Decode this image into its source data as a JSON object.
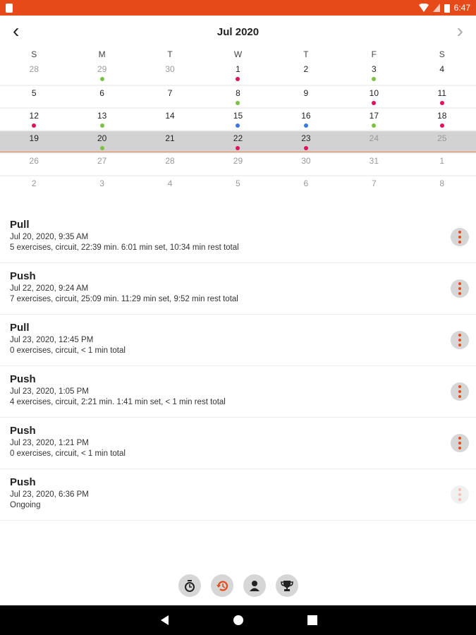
{
  "status_bar": {
    "time": "6:47"
  },
  "calendar": {
    "title": "Jul 2020",
    "weekdays": [
      "S",
      "M",
      "T",
      "W",
      "T",
      "F",
      "S"
    ],
    "colors": {
      "green": "#7cc242",
      "red": "#e0105a",
      "blue": "#3a78e0"
    },
    "selected_week": 3,
    "weeks": [
      [
        {
          "d": "28",
          "muted": true
        },
        {
          "d": "29",
          "muted": true,
          "dot": "green"
        },
        {
          "d": "30",
          "muted": true
        },
        {
          "d": "1",
          "dot": "red"
        },
        {
          "d": "2"
        },
        {
          "d": "3",
          "dot": "green"
        },
        {
          "d": "4"
        }
      ],
      [
        {
          "d": "5"
        },
        {
          "d": "6"
        },
        {
          "d": "7"
        },
        {
          "d": "8",
          "dot": "green"
        },
        {
          "d": "9"
        },
        {
          "d": "10",
          "dot": "red"
        },
        {
          "d": "11",
          "dot": "red"
        }
      ],
      [
        {
          "d": "12",
          "dot": "red"
        },
        {
          "d": "13",
          "dot": "green"
        },
        {
          "d": "14"
        },
        {
          "d": "15",
          "dot": "blue"
        },
        {
          "d": "16",
          "dot": "blue"
        },
        {
          "d": "17",
          "dot": "green"
        },
        {
          "d": "18",
          "dot": "red"
        }
      ],
      [
        {
          "d": "19"
        },
        {
          "d": "20",
          "dot": "green"
        },
        {
          "d": "21"
        },
        {
          "d": "22",
          "dot": "red"
        },
        {
          "d": "23",
          "dot": "red"
        },
        {
          "d": "24",
          "muted": true
        },
        {
          "d": "25",
          "muted": true
        }
      ],
      [
        {
          "d": "26",
          "muted": true
        },
        {
          "d": "27",
          "muted": true
        },
        {
          "d": "28",
          "muted": true
        },
        {
          "d": "29",
          "muted": true
        },
        {
          "d": "30",
          "muted": true
        },
        {
          "d": "31",
          "muted": true
        },
        {
          "d": "1",
          "muted": true
        }
      ],
      [
        {
          "d": "2",
          "muted": true
        },
        {
          "d": "3",
          "muted": true
        },
        {
          "d": "4",
          "muted": true
        },
        {
          "d": "5",
          "muted": true
        },
        {
          "d": "6",
          "muted": true
        },
        {
          "d": "7",
          "muted": true
        },
        {
          "d": "8",
          "muted": true
        }
      ]
    ]
  },
  "workouts": [
    {
      "title": "Pull",
      "date": "Jul 20, 2020, 9:35 AM",
      "summary": "5 exercises, circuit, 22:39 min. 6:01 min set, 10:34 min rest total"
    },
    {
      "title": "Push",
      "date": "Jul 22, 2020, 9:24 AM",
      "summary": "7 exercises, circuit, 25:09 min. 11:29 min set, 9:52 min rest total"
    },
    {
      "title": "Pull",
      "date": "Jul 23, 2020, 12:45 PM",
      "summary": "0 exercises, circuit, < 1 min total"
    },
    {
      "title": "Push",
      "date": "Jul 23, 2020, 1:05 PM",
      "summary": "4 exercises, circuit, 2:21 min. 1:41 min set, < 1 min rest total"
    },
    {
      "title": "Push",
      "date": "Jul 23, 2020, 1:21 PM",
      "summary": "0 exercises, circuit, < 1 min total"
    },
    {
      "title": "Push",
      "date": "Jul 23, 2020, 6:36 PM",
      "summary": "Ongoing",
      "faded": true
    }
  ],
  "bottom_nav": [
    {
      "icon": "timer-icon"
    },
    {
      "icon": "history-icon",
      "active": true
    },
    {
      "icon": "profile-icon"
    },
    {
      "icon": "trophy-icon"
    }
  ],
  "accent": "#e64a19"
}
